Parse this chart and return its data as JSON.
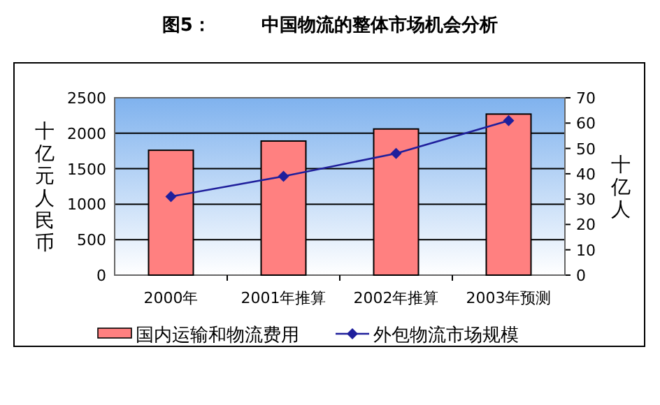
{
  "chart_data": {
    "type": "bar",
    "title": "图5：        中国物流的整体市场机会分析",
    "categories": [
      "2000年",
      "2001年推算",
      "2002年推算",
      "2003年预测"
    ],
    "series": [
      {
        "name": "国内运输和物流费用",
        "color": "#ff8080",
        "values": [
          1760,
          1890,
          2060,
          2270
        ]
      },
      {
        "name": "外包物流市场规模",
        "type": "line",
        "axis": "y2",
        "color": "#1f1f9c",
        "marker": "diamond",
        "values": [
          31,
          39,
          48,
          61
        ]
      }
    ],
    "ylim": [
      0,
      2500
    ],
    "yticks": [
      0,
      500,
      1000,
      1500,
      2000,
      2500
    ],
    "y2lim": [
      0,
      70
    ],
    "y2ticks": [
      0,
      10,
      20,
      30,
      40,
      50,
      60,
      70
    ],
    "ylabel": "十亿元人民币",
    "y2label": "十亿人",
    "grid": "y",
    "legend": "bottom"
  }
}
